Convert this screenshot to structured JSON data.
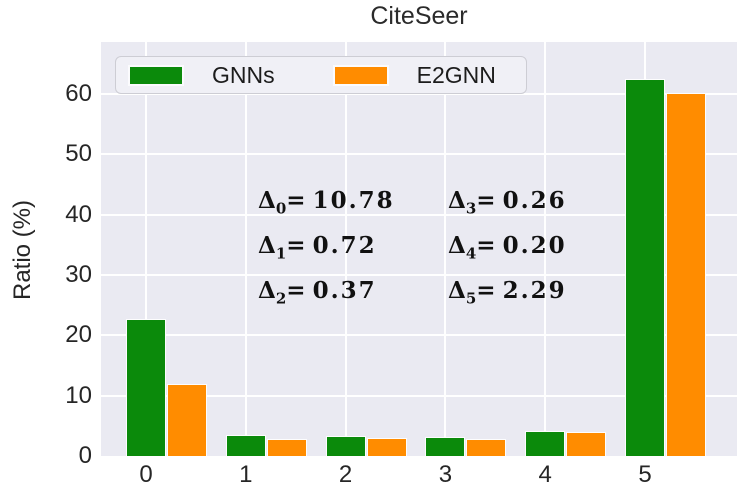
{
  "chart_data": {
    "type": "bar",
    "title": "CiteSeer",
    "xlabel": "",
    "ylabel": "Ratio (%)",
    "categories": [
      "0",
      "1",
      "2",
      "3",
      "4",
      "5"
    ],
    "series": [
      {
        "name": "GNNs",
        "color": "#0b8a0b",
        "values": [
          22.7,
          3.5,
          3.35,
          3.15,
          4.1,
          62.5
        ]
      },
      {
        "name": "E2GNN",
        "color": "#ff8c00",
        "values": [
          11.92,
          2.78,
          2.98,
          2.89,
          3.9,
          60.21
        ]
      }
    ],
    "yticks": [
      0,
      10,
      20,
      30,
      40,
      50,
      60
    ],
    "ylim": [
      0,
      68.6
    ],
    "grid": true,
    "legend_position": "upper left",
    "annotations": [
      {
        "symbol": "Δ",
        "sub": "0",
        "value": "10.78"
      },
      {
        "symbol": "Δ",
        "sub": "1",
        "value": "0.72"
      },
      {
        "symbol": "Δ",
        "sub": "2",
        "value": "0.37"
      },
      {
        "symbol": "Δ",
        "sub": "3",
        "value": "0.26"
      },
      {
        "symbol": "Δ",
        "sub": "4",
        "value": "0.20"
      },
      {
        "symbol": "Δ",
        "sub": "5",
        "value": "2.29"
      }
    ]
  },
  "colors": {
    "plot_bg": "#eaeaf2",
    "grid": "#ffffff",
    "text": "#262626",
    "gnns_green": "#0b8a0b",
    "e2gnn_orange": "#ff8c00"
  }
}
